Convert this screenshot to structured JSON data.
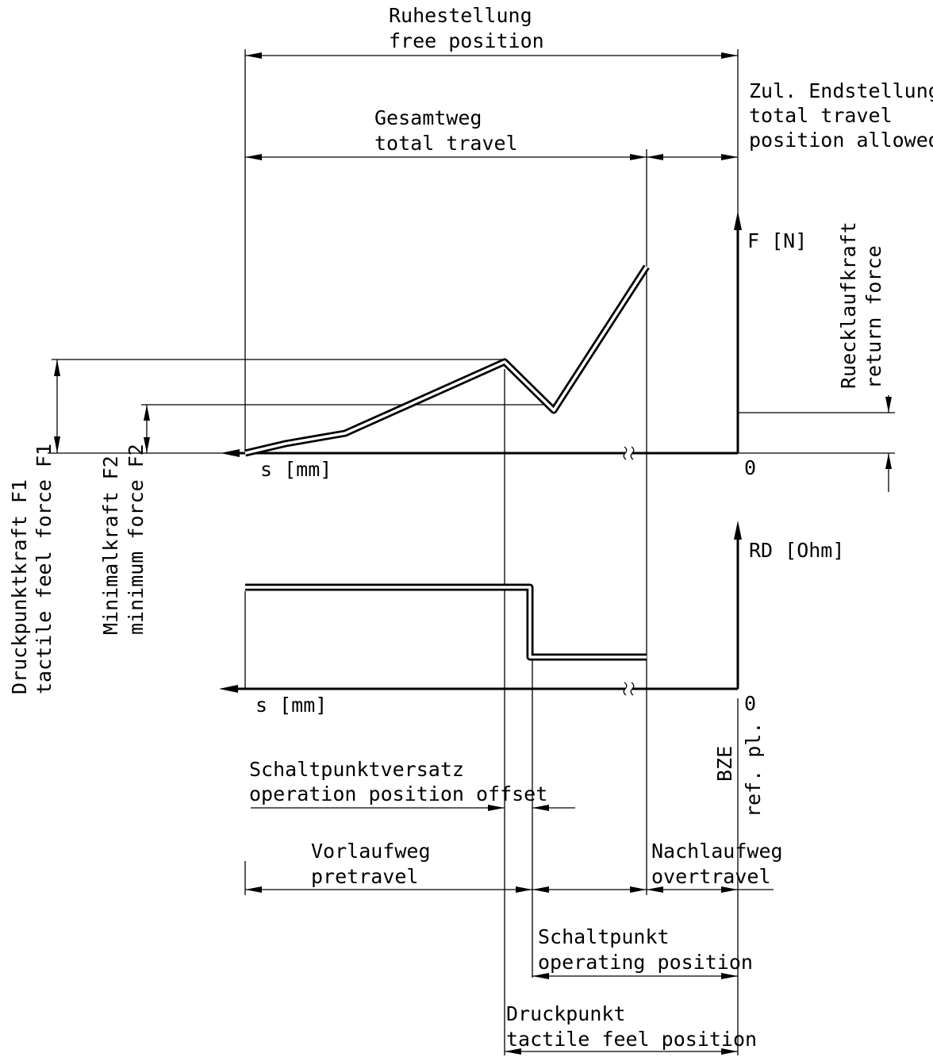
{
  "labels": {
    "free_position_de": "Ruhestellung",
    "free_position_en": "free position",
    "total_travel_de": "Gesamtweg",
    "total_travel_en": "total travel",
    "allowed_de": "Zul. Endstellung",
    "allowed_en1": "total travel",
    "allowed_en2": "position allowed",
    "force_axis": "F [N]",
    "return_force_de": "Ruecklaufkraft",
    "return_force_en": "return force",
    "s_axis_top": "s [mm]",
    "zero_top": "0",
    "resistance_axis": "RD [Ohm]",
    "s_axis_bottom": "s [mm]",
    "zero_bottom": "0",
    "tactile_force_de": "Druckpunktkraft F1",
    "tactile_force_en": "tactile feel force F1",
    "min_force_de": "Minimalkraft F2",
    "min_force_en": "minimum force F2",
    "ref_plane_de": "BZE",
    "ref_plane_en": "ref. pl.",
    "offset_de": "Schaltpunktversatz",
    "offset_en": "operation position offset",
    "pretravel_de": "Vorlaufweg",
    "pretravel_en": "pretravel",
    "overtravel_de": "Nachlaufweg",
    "overtravel_en": "overtravel",
    "operating_de": "Schaltpunkt",
    "operating_en": "operating position",
    "tactile_pos_de": "Druckpunkt",
    "tactile_pos_en": "tactile feel position"
  }
}
